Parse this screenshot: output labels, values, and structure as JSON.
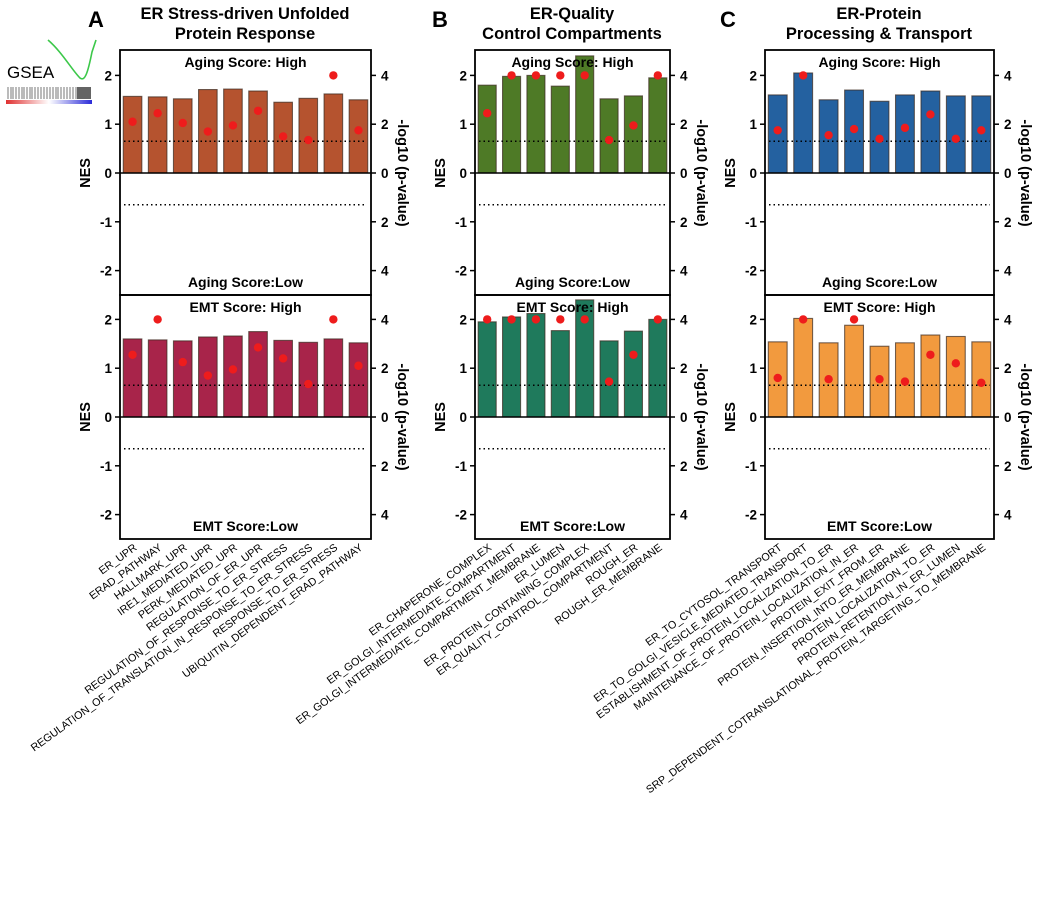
{
  "figure": {
    "gsea_label": "GSEA",
    "y_left_label": "NES",
    "y_right_label": "-log10 (p-value)",
    "nes_ticks": [
      "2",
      "1",
      "0",
      "-1",
      "-2"
    ],
    "p_ticks": [
      "4",
      "2",
      "0",
      "2",
      "4"
    ],
    "colors": {
      "aging_ER_stress": "#b5532f",
      "emt_ER_stress": "#a8244a",
      "aging_ER_quality": "#4e7a26",
      "emt_ER_quality": "#1f7a5c",
      "aging_ER_protein": "#2461a0",
      "emt_ER_protein": "#f29a3e",
      "dots": "#ee1c1c"
    }
  },
  "chart_data": [
    {
      "type": "bar",
      "panel_letter": "A",
      "title": "ER Stress-driven Unfolded\nProtein Response",
      "categories": [
        "ER_UPR",
        "ERAD_PATHWAY",
        "HALLMARK_UPR",
        "IRE1_MEDIATED_UPR",
        "PERK_MEDIATED_UPR",
        "REGULATION_OF_ER_UPR",
        "REGULATION_OF_RESPONSE_TO_ER_STRESS",
        "REGULATION_OF_TRANSLATION_IN_RESPONSE_TO_ER_STRESS",
        "RESPONSE_TO_ER_STRESS",
        "UBIQUITIN_DEPENDENT_ERAD_PATHWAY"
      ],
      "ylim_nes": [
        -2.5,
        2.5
      ],
      "ylim_p": [
        -5,
        5
      ],
      "threshold_p": 1.3,
      "subplots": [
        {
          "name": "aging",
          "label_high": "Aging Score: High",
          "label_low": "Aging Score:Low",
          "nes": [
            1.57,
            1.56,
            1.52,
            1.71,
            1.72,
            1.68,
            1.45,
            1.53,
            1.62,
            1.5
          ],
          "neglog10p": [
            2.1,
            2.45,
            2.05,
            1.7,
            1.95,
            2.55,
            1.5,
            1.35,
            4.0,
            1.75
          ]
        },
        {
          "name": "emt",
          "label_high": "EMT Score: High",
          "label_low": "EMT Score:Low",
          "nes": [
            1.6,
            1.58,
            1.56,
            1.64,
            1.66,
            1.75,
            1.57,
            1.53,
            1.6,
            1.52
          ],
          "neglog10p": [
            2.55,
            4.0,
            2.25,
            1.7,
            1.95,
            2.85,
            2.4,
            1.35,
            4.0,
            2.1
          ]
        }
      ]
    },
    {
      "type": "bar",
      "panel_letter": "B",
      "title": "ER-Quality\nControl Compartments",
      "categories": [
        "ER_CHAPERONE_COMPLEX",
        "ER_GOLGI_INTERMEDIATE_COMPARTMENT",
        "ER_GOLGI_INTERMEDIATE_COMPARTMENT_MEMBRANE",
        "ER_LUMEN",
        "ER_PROTEIN_CONTAINING_COMPLEX",
        "ER_QUALITY_CONTROL_COMPARTMENT",
        "ROUGH_ER",
        "ROUGH_ER_MEMBRANE"
      ],
      "ylim_nes": [
        -2.5,
        2.5
      ],
      "ylim_p": [
        -5,
        5
      ],
      "threshold_p": 1.3,
      "subplots": [
        {
          "name": "aging",
          "label_high": "Aging Score: High",
          "label_low": "Aging Score:Low",
          "nes": [
            1.8,
            1.98,
            2.0,
            1.78,
            2.4,
            1.52,
            1.58,
            1.95
          ],
          "neglog10p": [
            2.45,
            4.0,
            4.0,
            4.0,
            4.0,
            1.35,
            1.95,
            4.0
          ]
        },
        {
          "name": "emt",
          "label_high": "EMT Score: High",
          "label_low": "EMT Score:Low",
          "nes": [
            1.95,
            2.05,
            2.12,
            1.77,
            2.4,
            1.56,
            1.76,
            2.0
          ],
          "neglog10p": [
            4.0,
            4.0,
            4.0,
            4.0,
            4.0,
            1.45,
            2.55,
            4.0
          ]
        }
      ]
    },
    {
      "type": "bar",
      "panel_letter": "C",
      "title": "ER-Protein\nProcessing & Transport",
      "categories": [
        "ER_TO_CYTOSOL_TRANSPORT",
        "ER_TO_GOLGI_VESICLE_MEDIATED_TRANSPORT",
        "ESTABLISHMENT_OF_PROTEIN_LOCALIZATION_TO_ER",
        "MAINTENANCE_OF_PROTEIN_LOCALIZATION_IN_ER",
        "PROTEIN_EXIT_FROM_ER",
        "PROTEIN_INSERTION_INTO_ER_MEMBRANE",
        "PROTEIN_LOCALIZATION_TO_ER",
        "PROTEIN_RETENTION_IN_ER_LUMEN",
        "SRP_DEPENDENT_COTRANSLATIONAL_PROTEIN_TARGETING_TO_MEMBRANE"
      ],
      "ylim_nes": [
        -2.5,
        2.5
      ],
      "ylim_p": [
        -5,
        5
      ],
      "threshold_p": 1.3,
      "subplots": [
        {
          "name": "aging",
          "label_high": "Aging Score: High",
          "label_low": "Aging Score:Low",
          "nes": [
            1.6,
            2.05,
            1.5,
            1.7,
            1.47,
            1.6,
            1.68,
            1.58,
            1.58
          ],
          "neglog10p": [
            1.75,
            4.0,
            1.55,
            1.8,
            1.4,
            1.85,
            2.4,
            1.4,
            1.75
          ]
        },
        {
          "name": "emt",
          "label_high": "EMT Score: High",
          "label_low": "EMT Score:Low",
          "nes": [
            1.54,
            2.02,
            1.52,
            1.88,
            1.45,
            1.52,
            1.68,
            1.65,
            1.54
          ],
          "neglog10p": [
            1.6,
            4.0,
            1.55,
            4.0,
            1.55,
            1.45,
            2.55,
            2.2,
            1.4
          ]
        }
      ]
    }
  ]
}
